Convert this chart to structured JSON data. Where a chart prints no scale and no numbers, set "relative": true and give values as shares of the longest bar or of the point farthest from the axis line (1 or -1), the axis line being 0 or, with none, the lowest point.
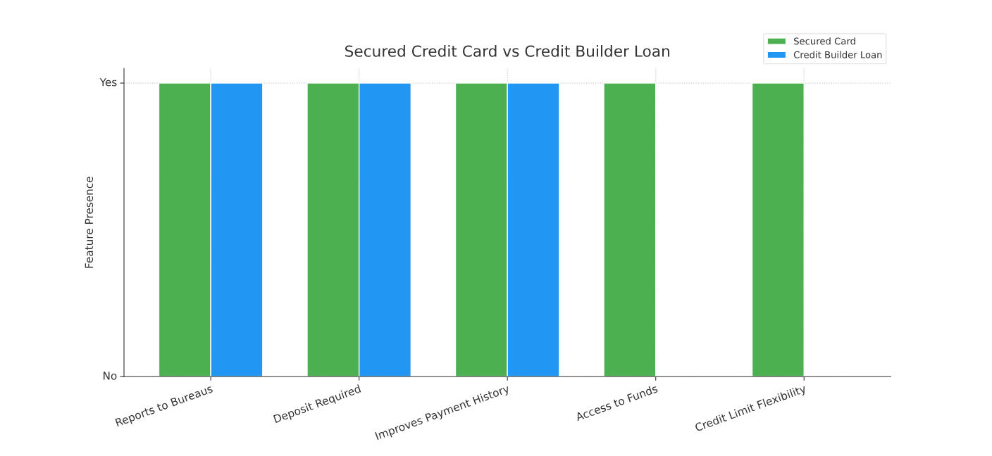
{
  "chart_data": {
    "type": "bar",
    "title": "Secured Credit Card vs Credit Builder Loan",
    "ylabel": "Feature Presence",
    "categories": [
      "Reports to Bureaus",
      "Deposit Required",
      "Improves Payment History",
      "Access to Funds",
      "Credit Limit Flexibility"
    ],
    "series": [
      {
        "name": "Secured Card",
        "color": "#4caf50",
        "values": [
          1,
          1,
          1,
          1,
          1
        ]
      },
      {
        "name": "Credit Builder Loan",
        "color": "#2196f3",
        "values": [
          1,
          1,
          1,
          0,
          0
        ]
      }
    ],
    "relative": true,
    "annotations": [
      "Yes",
      "No"
    ],
    "grid": true,
    "legend": "top right"
  }
}
